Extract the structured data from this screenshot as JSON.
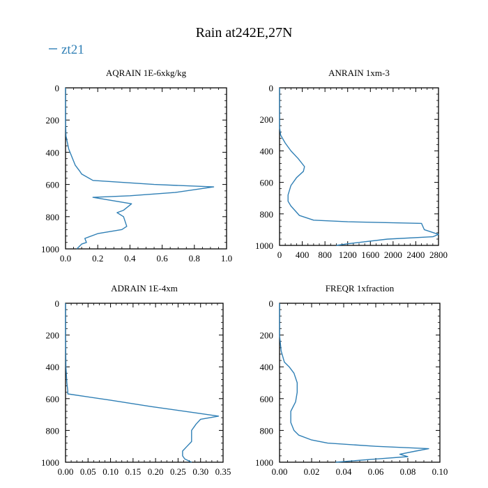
{
  "figure": {
    "title": "Rain at242E,27N",
    "legend": {
      "placement": "top-left",
      "entries": [
        {
          "label": "zt21",
          "color": "#2f7fb5"
        }
      ]
    }
  },
  "chart_data": [
    {
      "type": "line",
      "title": "AQRAIN  1E-6xkg/kg",
      "xlabel": "",
      "ylabel": "",
      "xlim": [
        0,
        1.0
      ],
      "ylim": [
        1000,
        0
      ],
      "y_inverted": true,
      "xticks": [
        "0.0",
        "0.2",
        "0.4",
        "0.6",
        "0.8",
        "1.0"
      ],
      "yticks": [
        "0",
        "200",
        "400",
        "600",
        "800",
        "1000"
      ],
      "series": [
        {
          "name": "zt21",
          "color": "#2f7fb5",
          "points": [
            [
              0,
              0
            ],
            [
              0,
              100
            ],
            [
              0,
              200
            ],
            [
              0.003,
              300
            ],
            [
              0.02,
              380
            ],
            [
              0.04,
              430
            ],
            [
              0.06,
              480
            ],
            [
              0.09,
              520
            ],
            [
              0.1,
              535
            ],
            [
              0.17,
              575
            ],
            [
              0.55,
              600
            ],
            [
              0.92,
              615
            ],
            [
              0.68,
              650
            ],
            [
              0.4,
              670
            ],
            [
              0.17,
              680
            ],
            [
              0.41,
              720
            ],
            [
              0.36,
              760
            ],
            [
              0.32,
              775
            ],
            [
              0.36,
              800
            ],
            [
              0.37,
              830
            ],
            [
              0.38,
              860
            ],
            [
              0.35,
              880
            ],
            [
              0.2,
              905
            ],
            [
              0.12,
              935
            ],
            [
              0.13,
              960
            ],
            [
              0.1,
              970
            ],
            [
              0.07,
              1000
            ]
          ]
        }
      ]
    },
    {
      "type": "line",
      "title": "ANRAIN  1xm-3",
      "xlabel": "",
      "ylabel": "",
      "xlim": [
        0,
        2800
      ],
      "ylim": [
        1000,
        0
      ],
      "y_inverted": true,
      "xticks": [
        "0",
        "400",
        "800",
        "1200",
        "1600",
        "2000",
        "2400",
        "2800"
      ],
      "yticks": [
        "0",
        "200",
        "400",
        "600",
        "800",
        "1000"
      ],
      "series": [
        {
          "name": "zt21",
          "color": "#2f7fb5",
          "points": [
            [
              0,
              0
            ],
            [
              0,
              100
            ],
            [
              0,
              250
            ],
            [
              20,
              300
            ],
            [
              100,
              350
            ],
            [
              200,
              400
            ],
            [
              330,
              450
            ],
            [
              440,
              500
            ],
            [
              420,
              530
            ],
            [
              300,
              570
            ],
            [
              200,
              620
            ],
            [
              150,
              680
            ],
            [
              150,
              720
            ],
            [
              200,
              750
            ],
            [
              300,
              790
            ],
            [
              350,
              810
            ],
            [
              600,
              840
            ],
            [
              1200,
              850
            ],
            [
              2500,
              860
            ],
            [
              2550,
              900
            ],
            [
              2800,
              930
            ],
            [
              2700,
              945
            ],
            [
              1900,
              960
            ],
            [
              1200,
              990
            ],
            [
              1000,
              1000
            ]
          ]
        }
      ]
    },
    {
      "type": "line",
      "title": "ADRAIN  1E-4xm",
      "xlabel": "",
      "ylabel": "",
      "xlim": [
        0,
        0.35
      ],
      "ylim": [
        1000,
        0
      ],
      "y_inverted": true,
      "xticks": [
        "0.00",
        "0.05",
        "0.10",
        "0.15",
        "0.20",
        "0.25",
        "0.30",
        "0.35"
      ],
      "yticks": [
        "0",
        "200",
        "400",
        "600",
        "800",
        "1000"
      ],
      "series": [
        {
          "name": "zt21",
          "color": "#2f7fb5",
          "points": [
            [
              0,
              0
            ],
            [
              0,
              200
            ],
            [
              0.001,
              400
            ],
            [
              0.003,
              500
            ],
            [
              0.005,
              550
            ],
            [
              0.005,
              570
            ],
            [
              0.1,
              610
            ],
            [
              0.19,
              650
            ],
            [
              0.29,
              690
            ],
            [
              0.34,
              710
            ],
            [
              0.3,
              730
            ],
            [
              0.29,
              760
            ],
            [
              0.28,
              800
            ],
            [
              0.28,
              840
            ],
            [
              0.28,
              870
            ],
            [
              0.27,
              900
            ],
            [
              0.26,
              930
            ],
            [
              0.26,
              960
            ],
            [
              0.265,
              980
            ],
            [
              0.28,
              1000
            ]
          ]
        }
      ]
    },
    {
      "type": "line",
      "title": "FREQR  1xfraction",
      "xlabel": "",
      "ylabel": "",
      "xlim": [
        0,
        0.1
      ],
      "ylim": [
        1000,
        0
      ],
      "y_inverted": true,
      "xticks": [
        "0.00",
        "0.02",
        "0.04",
        "0.06",
        "0.08",
        "0.10"
      ],
      "yticks": [
        "0",
        "200",
        "400",
        "600",
        "800",
        "1000"
      ],
      "series": [
        {
          "name": "zt21",
          "color": "#2f7fb5",
          "points": [
            [
              0,
              0
            ],
            [
              0,
              100
            ],
            [
              0,
              200
            ],
            [
              0.001,
              300
            ],
            [
              0.003,
              370
            ],
            [
              0.006,
              400
            ],
            [
              0.009,
              440
            ],
            [
              0.011,
              500
            ],
            [
              0.011,
              560
            ],
            [
              0.01,
              620
            ],
            [
              0.007,
              680
            ],
            [
              0.007,
              750
            ],
            [
              0.009,
              800
            ],
            [
              0.012,
              830
            ],
            [
              0.02,
              860
            ],
            [
              0.03,
              880
            ],
            [
              0.06,
              900
            ],
            [
              0.093,
              915
            ],
            [
              0.085,
              930
            ],
            [
              0.075,
              950
            ],
            [
              0.08,
              965
            ],
            [
              0.06,
              980
            ],
            [
              0.035,
              1000
            ]
          ]
        }
      ]
    }
  ]
}
